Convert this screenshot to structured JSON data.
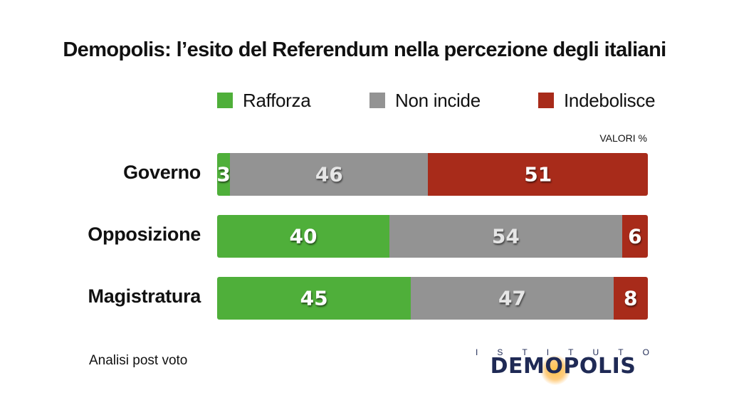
{
  "chart_data": {
    "type": "bar",
    "orientation": "horizontal",
    "stacked": true,
    "title": "Demopolis: l’esito del Referendum nella percezione degli italiani",
    "units": "VALORI %",
    "categories": [
      "Governo",
      "Opposizione",
      "Magistratura"
    ],
    "series": [
      {
        "name": "Rafforza",
        "color": "#4faf3a",
        "values": [
          3,
          40,
          45
        ]
      },
      {
        "name": "Non incide",
        "color": "#939393",
        "values": [
          46,
          54,
          47
        ]
      },
      {
        "name": "Indebolisce",
        "color": "#a82b1a",
        "values": [
          51,
          6,
          8
        ]
      }
    ],
    "xlim": [
      0,
      100
    ],
    "legend_position": "top"
  },
  "footer": {
    "note": "Analisi post voto",
    "logo_top": "ISTITUTO",
    "logo_main": "DEMOPOLIS"
  }
}
